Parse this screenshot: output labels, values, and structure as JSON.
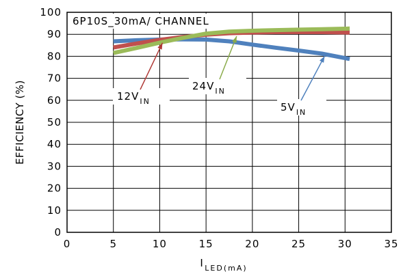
{
  "chart_data": {
    "type": "line",
    "title": "",
    "xlabel": "I",
    "xlabel_sub": "LED(mA)",
    "ylabel": "EFFICIENCY (%)",
    "xlim": [
      0,
      35
    ],
    "ylim": [
      0,
      100
    ],
    "xticks": [
      "0",
      "5",
      "10",
      "15",
      "20",
      "25",
      "30",
      "35"
    ],
    "yticks": [
      "0",
      "10",
      "20",
      "30",
      "40",
      "50",
      "60",
      "70",
      "80",
      "90",
      "100"
    ],
    "grid": true,
    "legend": "none",
    "inset_label": "6P10S_30mA/ CHANNEL",
    "series": [
      {
        "color": "#4f81bd",
        "x": [
          5,
          7.5,
          10,
          12.5,
          15,
          17.5,
          20,
          22.5,
          25,
          27.5,
          30.5
        ],
        "y": [
          86.8,
          87.3,
          87.6,
          87.7,
          87.6,
          86.8,
          85.3,
          83.9,
          82.6,
          81.2,
          78.8
        ]
      },
      {
        "color": "#c0504d",
        "x": [
          5,
          7.5,
          10,
          12.5,
          15,
          17.5,
          20,
          22.5,
          25,
          27.5,
          30.5
        ],
        "y": [
          84,
          85.8,
          87.5,
          88.8,
          89.8,
          90.5,
          90.8,
          91,
          91,
          91,
          90.8
        ]
      },
      {
        "color": "#9bbb59",
        "x": [
          5,
          7.5,
          10,
          12.5,
          15,
          17.5,
          20,
          22.5,
          25,
          27.5,
          30.5
        ],
        "y": [
          81.5,
          83.8,
          86.2,
          88.4,
          90.3,
          91.2,
          91.6,
          91.9,
          92.1,
          92.3,
          92.6
        ]
      }
    ],
    "annotations": [
      {
        "main": "12V",
        "sub": "IN",
        "x_data": 10.3,
        "y_data": 88.0
      },
      {
        "main": "24V",
        "sub": "IN",
        "x_data": 18.3,
        "y_data": 91.0
      },
      {
        "main": "5V",
        "sub": "IN",
        "x_data": 27.8,
        "y_data": 82.0
      }
    ]
  }
}
